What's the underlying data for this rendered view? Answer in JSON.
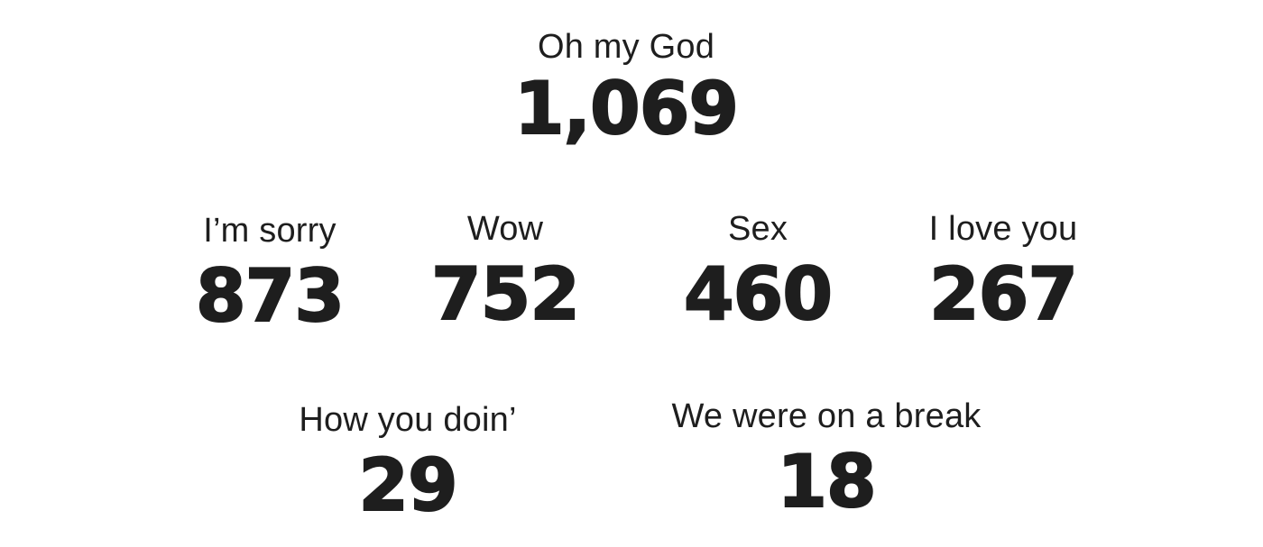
{
  "stats": [
    {
      "phrase": "Oh my God",
      "count": "1,069"
    },
    {
      "phrase": "I’m sorry",
      "count": "873"
    },
    {
      "phrase": "Wow",
      "count": "752"
    },
    {
      "phrase": "Sex",
      "count": "460"
    },
    {
      "phrase": "I love you",
      "count": "267"
    },
    {
      "phrase": "How you doin’",
      "count": "29"
    },
    {
      "phrase": "We were on a break",
      "count": "18"
    }
  ],
  "colors": {
    "text": "#1e1e1e",
    "background": "#ffffff"
  }
}
